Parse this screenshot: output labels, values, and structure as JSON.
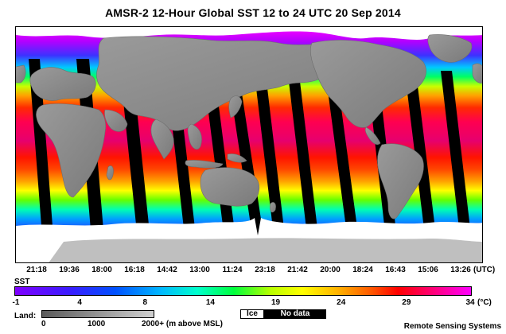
{
  "title": "AMSR-2 12-Hour Global SST  12 to 24 UTC  20 Sep 2014",
  "time_axis": {
    "labels": [
      "21:18",
      "19:36",
      "18:00",
      "16:18",
      "14:42",
      "13:00",
      "11:24",
      "23:18",
      "21:42",
      "20:00",
      "18:24",
      "16:43",
      "15:06",
      "13:26"
    ],
    "unit": "(UTC)"
  },
  "sst_legend": {
    "label": "SST",
    "ticks": [
      "-1",
      "4",
      "8",
      "14",
      "19",
      "24",
      "29",
      "34"
    ],
    "unit": "(°C)",
    "colors": [
      "#7f00ff",
      "#0051ff",
      "#00b8ff",
      "#00ff3c",
      "#ffff00",
      "#ff5a00",
      "#ff0000",
      "#ff00ff"
    ]
  },
  "land_legend": {
    "label": "Land:",
    "ticks": [
      "0",
      "1000",
      "2000+ (m above MSL)"
    ]
  },
  "ice_label": "Ice",
  "nodata_label": "No data",
  "credit": "Remote Sensing Systems",
  "map_colors": {
    "land": "#8c8c8c",
    "ice": "#ffffff",
    "no_data": "#000000"
  }
}
